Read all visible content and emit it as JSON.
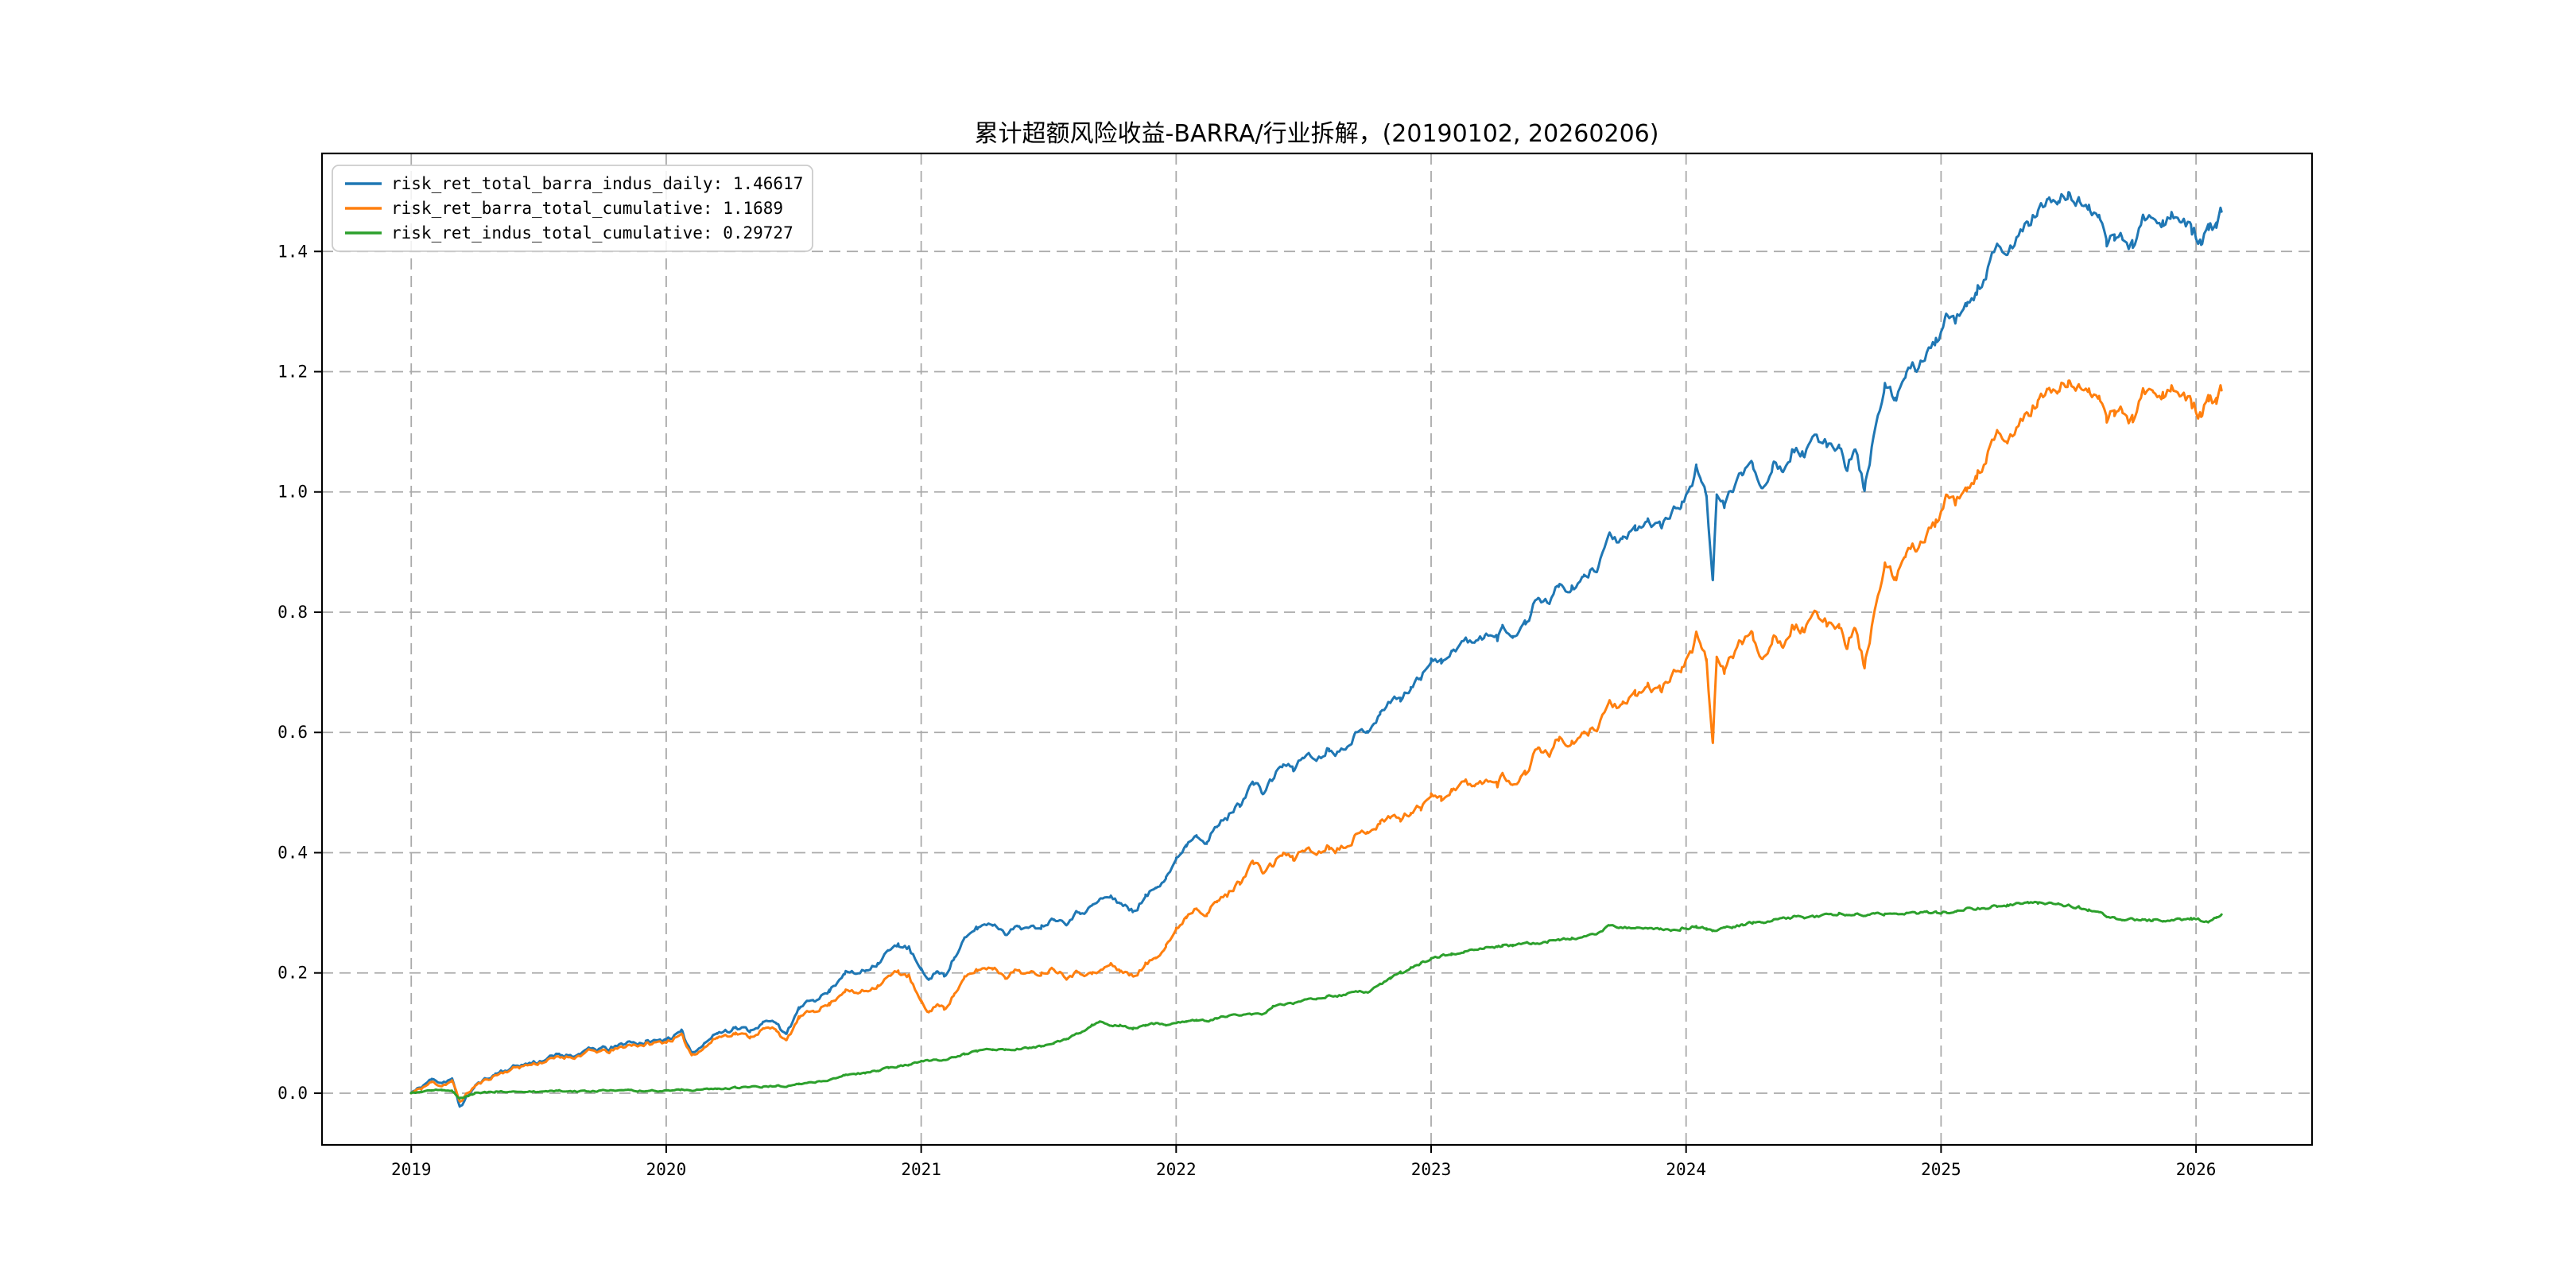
{
  "chart_data": {
    "type": "line",
    "title": "累计超额风险收益-BARRA/行业拆解，(20190102, 20260206)",
    "xlabel": "",
    "ylabel": "",
    "xlim": [
      2018.65,
      2026.455
    ],
    "ylim": [
      -0.086,
      1.563
    ],
    "x_ticks": [
      2019,
      2020,
      2021,
      2022,
      2023,
      2024,
      2025,
      2026
    ],
    "x_tick_labels": [
      "2019",
      "2020",
      "2021",
      "2022",
      "2023",
      "2024",
      "2025",
      "2026"
    ],
    "y_ticks": [
      0.0,
      0.2,
      0.4,
      0.6,
      0.8,
      1.0,
      1.2,
      1.4
    ],
    "y_tick_labels": [
      "0.0",
      "0.2",
      "0.4",
      "0.6",
      "0.8",
      "1.0",
      "1.2",
      "1.4"
    ],
    "grid": "dashed",
    "legend_position": "upper-left",
    "date_range": [
      "20190102",
      "20260206"
    ],
    "t": [
      2019.0,
      2019.04,
      2019.08,
      2019.12,
      2019.16,
      2019.19,
      2019.25,
      2019.33,
      2019.42,
      2019.5,
      2019.58,
      2019.65,
      2019.7,
      2019.78,
      2019.85,
      2019.92,
      2020.0,
      2020.06,
      2020.1,
      2020.15,
      2020.2,
      2020.27,
      2020.33,
      2020.38,
      2020.43,
      2020.47,
      2020.52,
      2020.58,
      2020.64,
      2020.7,
      2020.74,
      2020.78,
      2020.83,
      2020.87,
      2020.91,
      2020.95,
      2021.0,
      2021.03,
      2021.06,
      2021.09,
      2021.13,
      2021.17,
      2021.22,
      2021.28,
      2021.33,
      2021.38,
      2021.42,
      2021.47,
      2021.52,
      2021.57,
      2021.62,
      2021.67,
      2021.7,
      2021.74,
      2021.78,
      2021.83,
      2021.88,
      2021.92,
      2021.96,
      2022.0,
      2022.04,
      2022.08,
      2022.12,
      2022.16,
      2022.2,
      2022.25,
      2022.3,
      2022.34,
      2022.38,
      2022.42,
      2022.46,
      2022.5,
      2022.55,
      2022.6,
      2022.63,
      2022.7,
      2022.75,
      2022.8,
      2022.84,
      2022.88,
      2022.92,
      2022.96,
      2023.0,
      2023.04,
      2023.08,
      2023.13,
      2023.17,
      2023.21,
      2023.26,
      2023.28,
      2023.32,
      2023.37,
      2023.42,
      2023.46,
      2023.5,
      2023.55,
      2023.6,
      2023.65,
      2023.7,
      2023.75,
      2023.8,
      2023.85,
      2023.9,
      2023.94,
      2023.98,
      2024.02,
      2024.04,
      2024.06,
      2024.08,
      2024.105,
      2024.12,
      2024.15,
      2024.18,
      2024.22,
      2024.26,
      2024.3,
      2024.34,
      2024.38,
      2024.42,
      2024.46,
      2024.5,
      2024.55,
      2024.6,
      2024.63,
      2024.66,
      2024.7,
      2024.74,
      2024.78,
      2024.82,
      2024.86,
      2024.9,
      2024.94,
      2024.98,
      2025.02,
      2025.06,
      2025.1,
      2025.14,
      2025.18,
      2025.22,
      2025.26,
      2025.3,
      2025.34,
      2025.38,
      2025.42,
      2025.46,
      2025.5,
      2025.54,
      2025.58,
      2025.62,
      2025.65,
      2025.68,
      2025.71,
      2025.75,
      2025.79,
      2025.83,
      2025.87,
      2025.9,
      2025.94,
      2025.98,
      2026.02,
      2026.05,
      2026.08,
      2026.1
    ],
    "series": [
      {
        "name": "risk_ret_total_barra_indus_daily",
        "final_value": 1.46617,
        "color": "#1f77b4",
        "values": [
          0,
          0.01,
          0.022,
          0.019,
          0.024,
          -0.022,
          0.012,
          0.032,
          0.047,
          0.052,
          0.064,
          0.064,
          0.074,
          0.073,
          0.084,
          0.085,
          0.09,
          0.101,
          0.069,
          0.082,
          0.1,
          0.109,
          0.104,
          0.117,
          0.12,
          0.097,
          0.14,
          0.156,
          0.17,
          0.202,
          0.198,
          0.204,
          0.218,
          0.235,
          0.247,
          0.242,
          0.203,
          0.188,
          0.203,
          0.196,
          0.225,
          0.255,
          0.275,
          0.283,
          0.267,
          0.279,
          0.273,
          0.278,
          0.29,
          0.285,
          0.302,
          0.311,
          0.322,
          0.324,
          0.318,
          0.302,
          0.325,
          0.342,
          0.362,
          0.386,
          0.415,
          0.432,
          0.42,
          0.443,
          0.458,
          0.482,
          0.517,
          0.498,
          0.525,
          0.548,
          0.538,
          0.563,
          0.556,
          0.574,
          0.565,
          0.595,
          0.606,
          0.63,
          0.652,
          0.655,
          0.675,
          0.69,
          0.726,
          0.716,
          0.737,
          0.754,
          0.746,
          0.762,
          0.756,
          0.775,
          0.762,
          0.781,
          0.829,
          0.814,
          0.845,
          0.835,
          0.855,
          0.875,
          0.928,
          0.915,
          0.937,
          0.952,
          0.943,
          0.962,
          0.983,
          1.007,
          1.037,
          1.024,
          0.997,
          0.845,
          0.992,
          0.974,
          1.007,
          1.032,
          1.046,
          1.007,
          1.048,
          1.038,
          1.072,
          1.063,
          1.087,
          1.081,
          1.078,
          1.041,
          1.072,
          1.005,
          1.1,
          1.17,
          1.155,
          1.19,
          1.21,
          1.224,
          1.25,
          1.287,
          1.284,
          1.306,
          1.332,
          1.369,
          1.401,
          1.393,
          1.425,
          1.447,
          1.467,
          1.481,
          1.486,
          1.491,
          1.479,
          1.481,
          1.459,
          1.405,
          1.428,
          1.425,
          1.408,
          1.45,
          1.467,
          1.45,
          1.462,
          1.448,
          1.436,
          1.418,
          1.436,
          1.439,
          1.46617
        ]
      },
      {
        "name": "risk_ret_barra_total_cumulative",
        "final_value": 1.1689,
        "color": "#ff7f0e",
        "values": [
          0,
          0.008,
          0.018,
          0.013,
          0.02,
          -0.014,
          0.012,
          0.03,
          0.044,
          0.05,
          0.06,
          0.061,
          0.07,
          0.069,
          0.08,
          0.081,
          0.086,
          0.095,
          0.064,
          0.076,
          0.093,
          0.1,
          0.094,
          0.106,
          0.108,
          0.085,
          0.125,
          0.138,
          0.148,
          0.172,
          0.166,
          0.17,
          0.18,
          0.193,
          0.202,
          0.195,
          0.15,
          0.134,
          0.148,
          0.14,
          0.165,
          0.19,
          0.205,
          0.21,
          0.195,
          0.205,
          0.198,
          0.2,
          0.208,
          0.195,
          0.202,
          0.198,
          0.202,
          0.214,
          0.205,
          0.194,
          0.213,
          0.226,
          0.248,
          0.27,
          0.295,
          0.31,
          0.3,
          0.318,
          0.33,
          0.352,
          0.385,
          0.368,
          0.38,
          0.4,
          0.388,
          0.408,
          0.398,
          0.412,
          0.405,
          0.425,
          0.438,
          0.448,
          0.462,
          0.455,
          0.468,
          0.475,
          0.502,
          0.488,
          0.505,
          0.518,
          0.508,
          0.522,
          0.512,
          0.53,
          0.516,
          0.532,
          0.578,
          0.562,
          0.59,
          0.578,
          0.595,
          0.61,
          0.65,
          0.64,
          0.662,
          0.676,
          0.67,
          0.69,
          0.71,
          0.732,
          0.76,
          0.748,
          0.725,
          0.575,
          0.72,
          0.7,
          0.73,
          0.752,
          0.762,
          0.722,
          0.76,
          0.748,
          0.78,
          0.77,
          0.792,
          0.785,
          0.78,
          0.745,
          0.775,
          0.71,
          0.803,
          0.872,
          0.857,
          0.891,
          0.91,
          0.924,
          0.949,
          0.985,
          0.98,
          1.0,
          1.025,
          1.06,
          1.09,
          1.08,
          1.11,
          1.13,
          1.15,
          1.165,
          1.172,
          1.18,
          1.17,
          1.176,
          1.16,
          1.11,
          1.136,
          1.135,
          1.119,
          1.162,
          1.18,
          1.164,
          1.175,
          1.16,
          1.146,
          1.13,
          1.152,
          1.148,
          1.1689
        ]
      },
      {
        "name": "risk_ret_indus_total_cumulative",
        "final_value": 0.29727,
        "color": "#2ca02c",
        "values": [
          0,
          0.002,
          0.004,
          0.006,
          0.004,
          -0.008,
          0,
          0.002,
          0.003,
          0.002,
          0.004,
          0.003,
          0.004,
          0.004,
          0.004,
          0.004,
          0.004,
          0.006,
          0.005,
          0.006,
          0.007,
          0.009,
          0.01,
          0.011,
          0.012,
          0.012,
          0.015,
          0.018,
          0.022,
          0.03,
          0.032,
          0.034,
          0.038,
          0.042,
          0.045,
          0.047,
          0.053,
          0.054,
          0.055,
          0.056,
          0.06,
          0.065,
          0.07,
          0.073,
          0.072,
          0.074,
          0.075,
          0.078,
          0.082,
          0.09,
          0.1,
          0.113,
          0.12,
          0.11,
          0.113,
          0.108,
          0.112,
          0.116,
          0.114,
          0.116,
          0.12,
          0.122,
          0.12,
          0.125,
          0.128,
          0.13,
          0.132,
          0.13,
          0.145,
          0.148,
          0.15,
          0.155,
          0.158,
          0.162,
          0.16,
          0.17,
          0.168,
          0.182,
          0.19,
          0.2,
          0.207,
          0.215,
          0.224,
          0.228,
          0.232,
          0.236,
          0.238,
          0.24,
          0.244,
          0.245,
          0.246,
          0.249,
          0.251,
          0.252,
          0.255,
          0.257,
          0.26,
          0.265,
          0.278,
          0.275,
          0.275,
          0.276,
          0.273,
          0.272,
          0.273,
          0.275,
          0.277,
          0.276,
          0.272,
          0.27,
          0.272,
          0.274,
          0.277,
          0.28,
          0.284,
          0.285,
          0.288,
          0.29,
          0.292,
          0.293,
          0.295,
          0.296,
          0.298,
          0.296,
          0.297,
          0.295,
          0.297,
          0.298,
          0.298,
          0.299,
          0.3,
          0.3,
          0.301,
          0.302,
          0.304,
          0.306,
          0.307,
          0.309,
          0.311,
          0.313,
          0.315,
          0.317,
          0.317,
          0.316,
          0.314,
          0.311,
          0.309,
          0.305,
          0.299,
          0.295,
          0.292,
          0.29,
          0.289,
          0.288,
          0.287,
          0.286,
          0.287,
          0.288,
          0.29,
          0.288,
          0.284,
          0.291,
          0.29727
        ]
      }
    ],
    "render_hints": {
      "noise_seed": 11,
      "noise_scale": [
        0.0015,
        0.006,
        0.0028
      ],
      "grid_color": "#aaaaaa",
      "spine_color": "#000000",
      "line_width": 3
    }
  },
  "legend": {
    "items": [
      {
        "label": "risk_ret_total_barra_indus_daily: 1.46617",
        "color": "#1f77b4"
      },
      {
        "label": "risk_ret_barra_total_cumulative: 1.1689",
        "color": "#ff7f0e"
      },
      {
        "label": "risk_ret_indus_total_cumulative: 0.29727",
        "color": "#2ca02c"
      }
    ]
  }
}
